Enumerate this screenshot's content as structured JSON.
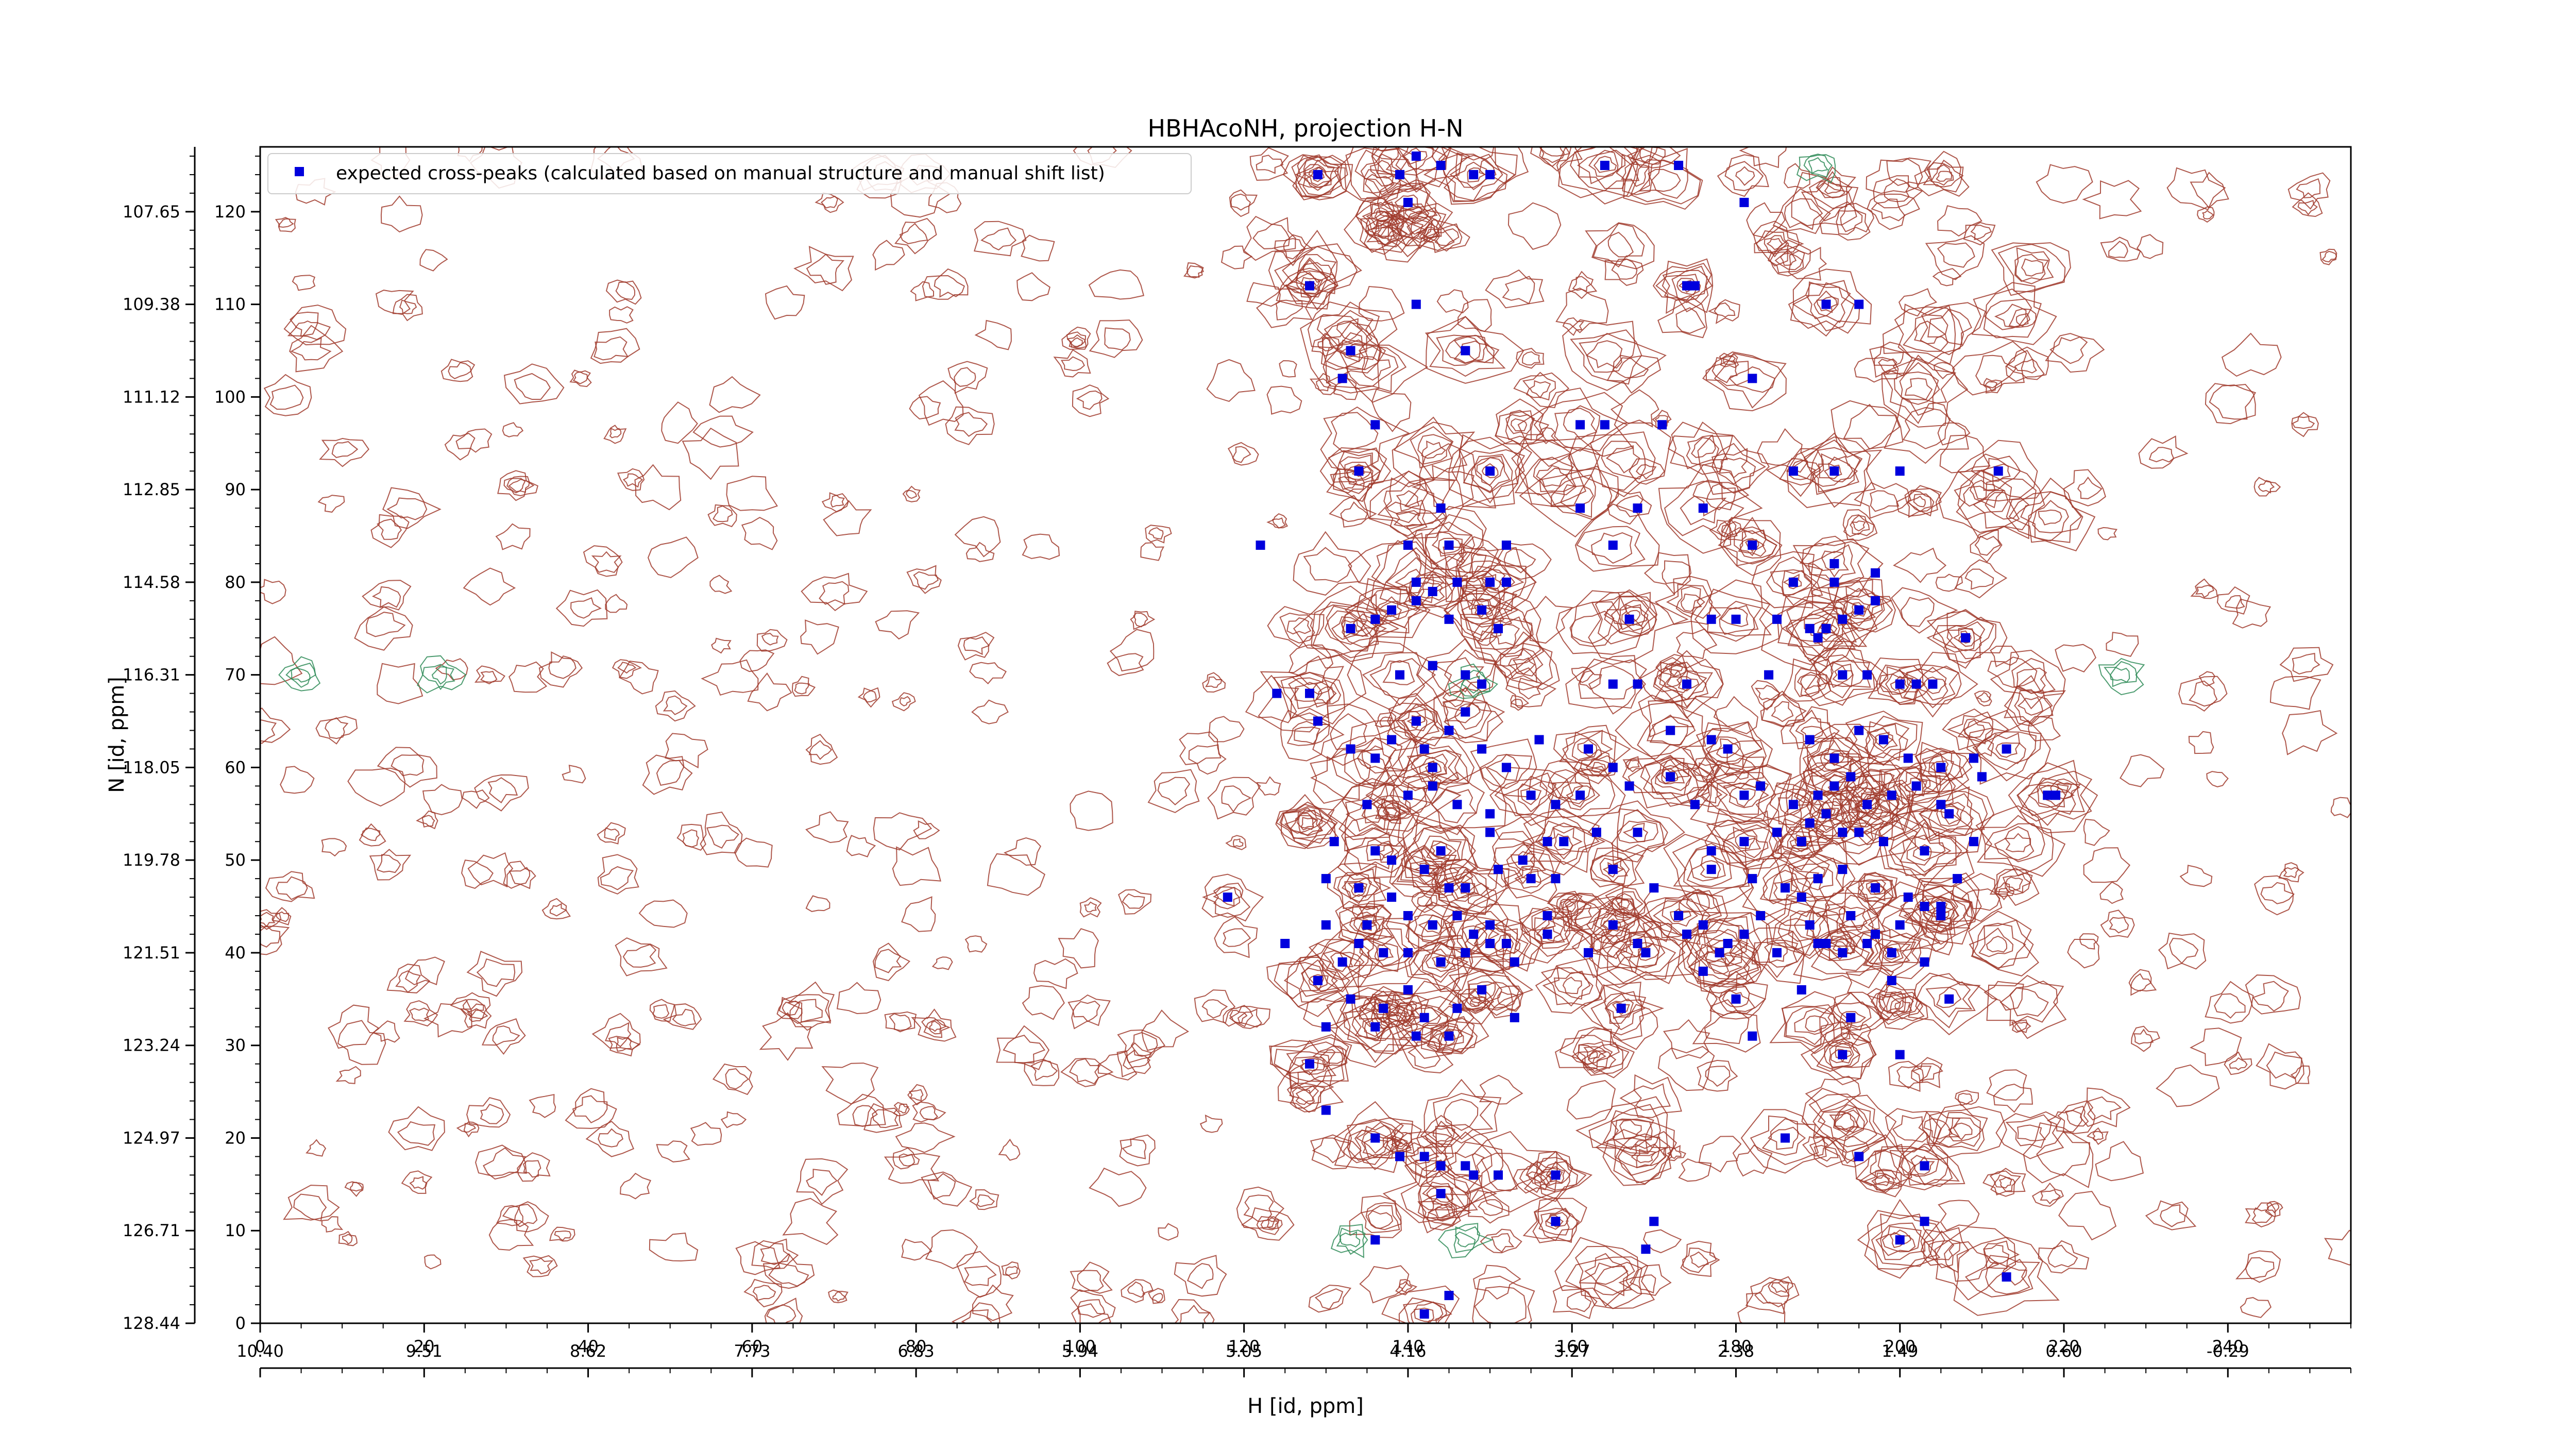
{
  "chart_data": {
    "type": "scatter",
    "title": "HBHAcoNH, projection H-N",
    "xlabel": "",
    "ylabel": "N [id, ppm]",
    "x2label": "H [id, ppm]",
    "xlim": [
      0,
      255
    ],
    "ylim": [
      0,
      127
    ],
    "x_index_ticks": [
      0,
      20,
      40,
      60,
      80,
      100,
      120,
      140,
      160,
      180,
      200,
      220,
      240
    ],
    "x_ppm_ticks": [
      "10.40",
      "9.51",
      "8.62",
      "7.73",
      "6.83",
      "5.94",
      "5.05",
      "4.16",
      "3.27",
      "2.38",
      "1.49",
      "0.60",
      "-0.29"
    ],
    "y_index_ticks": [
      0,
      10,
      20,
      30,
      40,
      50,
      60,
      70,
      80,
      90,
      100,
      110,
      120
    ],
    "y_ppm_ticks": [
      "128.44",
      "126.71",
      "124.97",
      "123.24",
      "121.51",
      "119.78",
      "118.05",
      "116.31",
      "114.58",
      "112.85",
      "111.12",
      "109.38",
      "107.65"
    ],
    "grid": false,
    "legend": {
      "placement": "top-left",
      "entries": [
        "expected cross-peaks (calculated based on manual structure and manual shift list)"
      ]
    },
    "colors": {
      "marker": "#0000dd",
      "contour_main": "#a0392b",
      "contour_negative": "#2e8b57"
    },
    "series": [
      {
        "name": "expected cross-peaks (calculated based on manual structure and manual shift list)",
        "x": [
          129,
          139,
          141,
          144,
          148,
          150,
          164,
          173,
          140,
          181,
          128,
          141,
          174,
          175,
          191,
          195,
          133,
          132,
          147,
          136,
          161,
          171,
          182,
          164,
          134,
          144,
          150,
          187,
          192,
          200,
          212,
          168,
          176,
          140,
          145,
          122,
          165,
          161,
          182,
          152,
          141,
          146,
          150,
          152,
          187,
          192,
          192,
          197,
          133,
          136,
          138,
          141,
          143,
          145,
          149,
          151,
          167,
          177,
          180,
          185,
          189,
          190,
          191,
          193,
          195,
          197,
          208,
          124,
          128,
          129,
          139,
          143,
          147,
          149,
          165,
          168,
          174,
          184,
          193,
          196,
          200,
          202,
          204,
          133,
          136,
          138,
          141,
          142,
          143,
          145,
          147,
          149,
          152,
          156,
          162,
          165,
          172,
          177,
          179,
          189,
          192,
          195,
          198,
          201,
          205,
          209,
          213,
          135,
          140,
          143,
          146,
          150,
          155,
          158,
          161,
          167,
          172,
          175,
          181,
          183,
          187,
          190,
          192,
          194,
          196,
          199,
          202,
          205,
          206,
          210,
          218,
          131,
          136,
          138,
          144,
          150,
          154,
          157,
          159,
          163,
          168,
          177,
          181,
          185,
          188,
          189,
          191,
          193,
          195,
          198,
          203,
          209,
          219,
          130,
          134,
          138,
          142,
          145,
          147,
          151,
          155,
          158,
          165,
          170,
          177,
          182,
          186,
          188,
          190,
          193,
          197,
          201,
          205,
          207,
          118,
          130,
          135,
          140,
          143,
          146,
          148,
          150,
          152,
          157,
          165,
          168,
          173,
          176,
          179,
          183,
          189,
          191,
          194,
          197,
          200,
          203,
          205,
          125,
          132,
          134,
          137,
          140,
          144,
          147,
          150,
          153,
          157,
          162,
          169,
          174,
          178,
          181,
          185,
          190,
          193,
          196,
          199,
          203,
          129,
          133,
          137,
          140,
          142,
          146,
          149,
          153,
          166,
          176,
          180,
          188,
          194,
          199,
          206,
          130,
          136,
          141,
          145,
          182,
          193,
          200,
          128,
          130,
          136,
          139,
          142,
          144,
          147,
          151,
          158,
          170,
          186,
          195,
          203,
          136,
          144,
          148,
          158,
          169,
          200,
          203,
          213,
          145,
          142
        ],
        "y": [
          124,
          124,
          126,
          125,
          124,
          124,
          125,
          125,
          121,
          121,
          112,
          110,
          112,
          112,
          110,
          110,
          105,
          102,
          105,
          97,
          97,
          97,
          102,
          97,
          92,
          88,
          92,
          92,
          92,
          92,
          92,
          88,
          88,
          84,
          84,
          84,
          84,
          88,
          84,
          84,
          80,
          80,
          80,
          80,
          80,
          80,
          82,
          81,
          75,
          76,
          77,
          78,
          79,
          76,
          77,
          75,
          76,
          76,
          76,
          76,
          75,
          74,
          75,
          76,
          77,
          78,
          74,
          68,
          68,
          65,
          70,
          71,
          70,
          69,
          69,
          69,
          69,
          70,
          70,
          70,
          69,
          69,
          69,
          62,
          61,
          63,
          65,
          62,
          60,
          64,
          66,
          62,
          60,
          63,
          62,
          60,
          64,
          63,
          62,
          63,
          61,
          64,
          63,
          61,
          60,
          61,
          62,
          56,
          57,
          58,
          56,
          55,
          57,
          56,
          57,
          58,
          59,
          56,
          57,
          58,
          56,
          57,
          58,
          59,
          56,
          57,
          58,
          56,
          55,
          59,
          57,
          52,
          51,
          50,
          51,
          53,
          50,
          52,
          52,
          53,
          53,
          51,
          52,
          53,
          52,
          54,
          55,
          53,
          53,
          52,
          51,
          52,
          57,
          48,
          47,
          46,
          49,
          47,
          47,
          49,
          48,
          48,
          49,
          47,
          49,
          48,
          47,
          46,
          48,
          49,
          47,
          46,
          45,
          48,
          46,
          43,
          43,
          44,
          43,
          44,
          42,
          43,
          41,
          44,
          43,
          41,
          44,
          43,
          41,
          44,
          43,
          41,
          44,
          42,
          43,
          45,
          44,
          41,
          39,
          41,
          40,
          40,
          39,
          40,
          41,
          39,
          42,
          40,
          40,
          42,
          40,
          42,
          40,
          41,
          40,
          41,
          40,
          39,
          37,
          35,
          34,
          36,
          33,
          34,
          36,
          33,
          34,
          38,
          35,
          36,
          33,
          37,
          35,
          32,
          32,
          31,
          31,
          31,
          29,
          29,
          28,
          23,
          20,
          18,
          18,
          17,
          17,
          16,
          11,
          11,
          20,
          18,
          17,
          9,
          14,
          16,
          16,
          8,
          9,
          11,
          5,
          3,
          1
        ]
      }
    ]
  }
}
